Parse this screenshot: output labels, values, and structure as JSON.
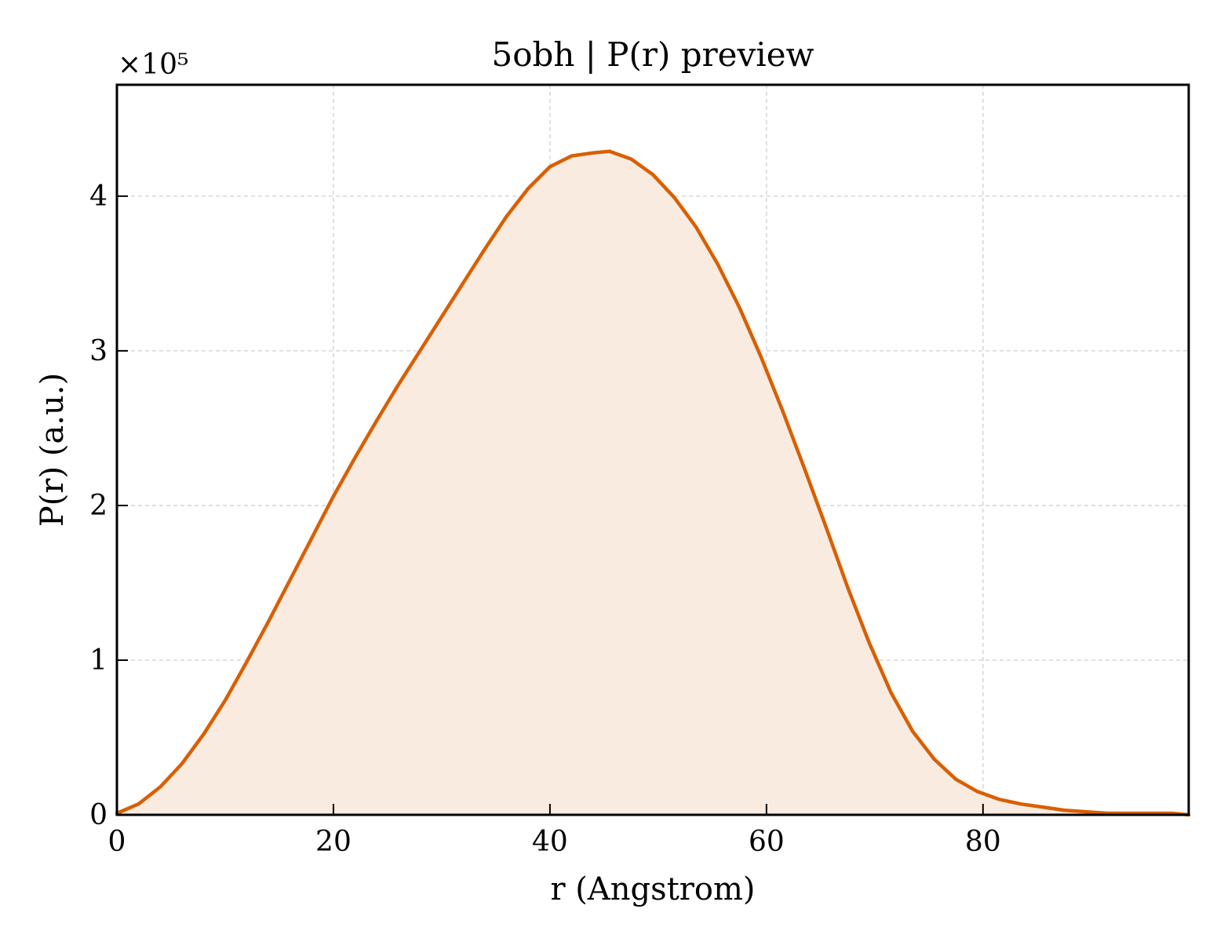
{
  "chart_data": {
    "type": "area",
    "title": "5obh | P(r) preview",
    "xlabel": "r (Angstrom)",
    "ylabel": "P(r) (a.u.)",
    "y_multiplier_label": "×10⁵",
    "xlim": [
      0,
      99
    ],
    "ylim": [
      0,
      4.72
    ],
    "x_ticks": [
      0,
      20,
      40,
      60,
      80
    ],
    "x_tick_labels": [
      "0",
      "20",
      "40",
      "60",
      "80"
    ],
    "y_ticks": [
      0,
      1,
      2,
      3,
      4
    ],
    "y_tick_labels": [
      "0",
      "1",
      "2",
      "3",
      "4"
    ],
    "grid": true,
    "line_color": "#d95f02",
    "fill_color": "#f9ebe0",
    "series": [
      {
        "x": [
          0,
          2,
          4,
          6,
          8,
          10,
          12,
          14,
          16,
          18,
          20,
          22,
          24,
          26,
          28,
          30,
          32,
          34,
          36,
          38,
          40,
          42,
          44,
          45.5,
          47.5,
          49.5,
          51.5,
          53.5,
          55.5,
          57.5,
          59.5,
          61.5,
          63.5,
          65.5,
          67.5,
          69.5,
          71.5,
          73.5,
          75.5,
          77.5,
          79.5,
          81.5,
          83.5,
          85.5,
          87.5,
          89.5,
          91.5,
          93.5,
          95.5,
          97.5,
          99
        ],
        "values": [
          0.01,
          0.07,
          0.18,
          0.33,
          0.52,
          0.74,
          0.99,
          1.25,
          1.52,
          1.79,
          2.06,
          2.31,
          2.55,
          2.78,
          3.0,
          3.22,
          3.44,
          3.66,
          3.87,
          4.05,
          4.19,
          4.26,
          4.28,
          4.29,
          4.24,
          4.14,
          3.99,
          3.8,
          3.56,
          3.28,
          2.96,
          2.61,
          2.24,
          1.86,
          1.47,
          1.11,
          0.79,
          0.54,
          0.36,
          0.23,
          0.15,
          0.1,
          0.07,
          0.05,
          0.03,
          0.02,
          0.01,
          0.01,
          0.01,
          0.01,
          0.0
        ]
      }
    ]
  }
}
